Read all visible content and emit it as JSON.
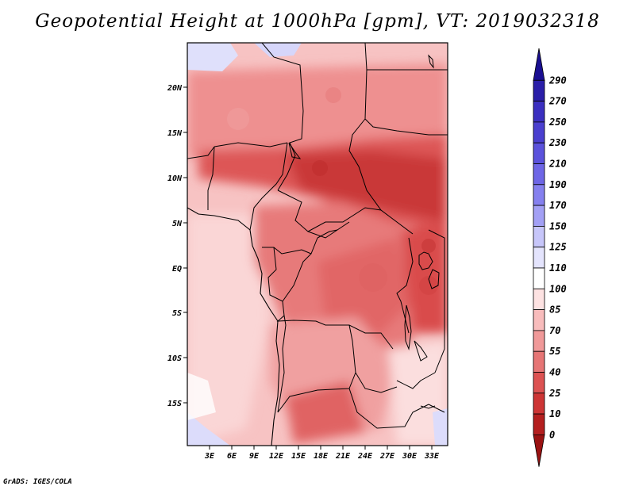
{
  "title": "Geopotential Height at 1000hPa [gpm], VT: 2019032318",
  "credit": "GrADS: IGES/COLA",
  "lat_labels": [
    "20N",
    "15N",
    "10N",
    "5N",
    "EQ",
    "5S",
    "10S",
    "15S"
  ],
  "lon_labels": [
    "3E",
    "6E",
    "9E",
    "12E",
    "15E",
    "18E",
    "21E",
    "24E",
    "27E",
    "30E",
    "33E"
  ],
  "colorbar": {
    "labels": [
      "290",
      "270",
      "250",
      "230",
      "210",
      "190",
      "170",
      "150",
      "125",
      "110",
      "100",
      "85",
      "70",
      "55",
      "40",
      "25",
      "10",
      "0"
    ],
    "colors": [
      "#1a0f91",
      "#2a1ea8",
      "#3b2fc0",
      "#4a3fcf",
      "#5b52dc",
      "#6e66e6",
      "#8580ef",
      "#a3a0f5",
      "#c7c6fa",
      "#e4e4fd",
      "#ffffff",
      "#fde2e2",
      "#f8bcbc",
      "#f09999",
      "#e67575",
      "#dc5252",
      "#cd3535",
      "#b41f1f",
      "#9a1212"
    ]
  }
}
